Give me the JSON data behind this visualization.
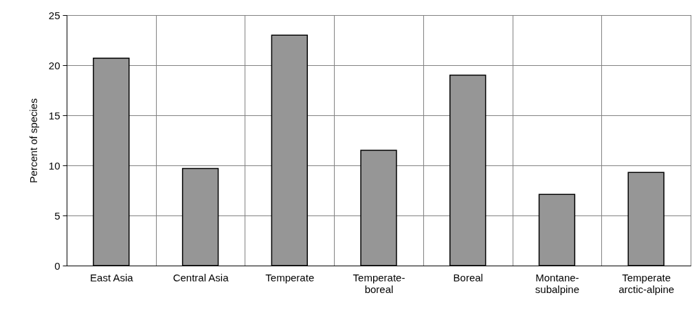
{
  "chart_data": {
    "type": "bar",
    "ylabel": "Percent of species",
    "categories": [
      "East Asia",
      "Central Asia",
      "Temperate",
      "Temperate-boreal",
      "Boreal",
      "Montane-subalpine",
      "Temperate arctic-alpine"
    ],
    "values": [
      20.7,
      9.7,
      23.0,
      11.5,
      19.0,
      7.1,
      9.3
    ],
    "color": "#969696",
    "ylim": [
      0,
      25
    ],
    "yticks": [
      0,
      5,
      10,
      15,
      20,
      25
    ],
    "grid": true
  }
}
